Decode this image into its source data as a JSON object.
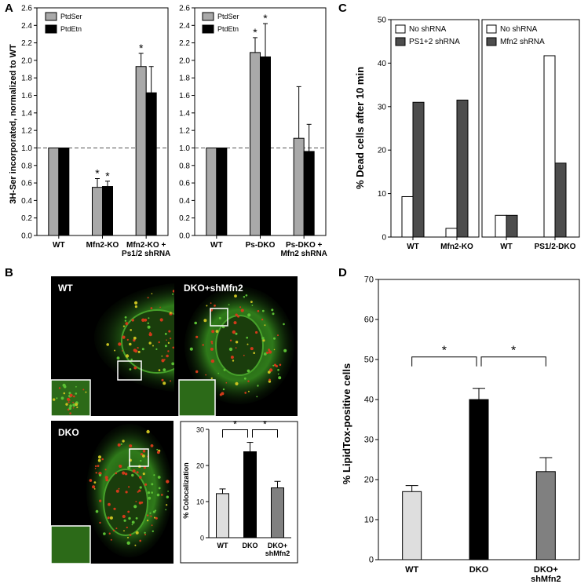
{
  "panels": {
    "A": "A",
    "B": "B",
    "C": "C",
    "D": "D"
  },
  "colors": {
    "grey": "#a9a9a9",
    "black": "#000000",
    "dark_grey": "#4d4d4d",
    "light_grey": "#dedede",
    "mid_grey": "#808080",
    "white": "#ffffff"
  },
  "chart_data": [
    {
      "id": "A-left",
      "type": "bar",
      "ylabel": "3H-Ser incorporated, normalized to WT",
      "ylim": [
        0,
        2.6
      ],
      "yticks": [
        0,
        0.2,
        0.4,
        0.6,
        0.8,
        1.0,
        1.2,
        1.4,
        1.6,
        1.8,
        2.0,
        2.2,
        2.4,
        2.6
      ],
      "reference_line": 1.0,
      "categories": [
        "WT",
        "Mfn2-KO",
        "Mfn2-KO + Ps1/2 shRNA"
      ],
      "series": [
        {
          "name": "PtdSer",
          "color": "#a9a9a9",
          "values": [
            1.0,
            0.55,
            1.93
          ],
          "errors": [
            0,
            0.1,
            0.15
          ],
          "stars": [
            false,
            true,
            true
          ]
        },
        {
          "name": "PtdEtn",
          "color": "#000000",
          "values": [
            1.0,
            0.56,
            1.63
          ],
          "errors": [
            0,
            0.06,
            0.3
          ],
          "stars": [
            false,
            true,
            false
          ]
        }
      ]
    },
    {
      "id": "A-right",
      "type": "bar",
      "ylim": [
        0,
        2.6
      ],
      "yticks": [
        0,
        0.2,
        0.4,
        0.6,
        0.8,
        1.0,
        1.2,
        1.4,
        1.6,
        1.8,
        2.0,
        2.2,
        2.4,
        2.6
      ],
      "reference_line": 1.0,
      "categories": [
        "WT",
        "Ps-DKO",
        "Ps-DKO + Mfn2 shRNA"
      ],
      "series": [
        {
          "name": "PtdSer",
          "color": "#a9a9a9",
          "values": [
            1.0,
            2.09,
            1.11
          ],
          "errors": [
            0,
            0.17,
            0.59
          ],
          "stars": [
            false,
            true,
            false
          ]
        },
        {
          "name": "PtdEtn",
          "color": "#000000",
          "values": [
            1.0,
            2.04,
            0.96
          ],
          "errors": [
            0,
            0.38,
            0.31
          ],
          "stars": [
            false,
            true,
            false
          ]
        }
      ]
    },
    {
      "id": "C-left",
      "type": "bar",
      "ylabel": "% Dead cells after 10 min",
      "ylim": [
        0,
        50
      ],
      "yticks": [
        0,
        10,
        20,
        30,
        40,
        50
      ],
      "categories": [
        "WT",
        "Mfn2-KO"
      ],
      "series": [
        {
          "name": "No shRNA",
          "color": "#ffffff",
          "values": [
            9.3,
            2.0
          ]
        },
        {
          "name": "PS1+2 shRNA",
          "color": "#4d4d4d",
          "values": [
            31.0,
            31.5
          ]
        }
      ]
    },
    {
      "id": "C-right",
      "type": "bar",
      "ylim": [
        0,
        50
      ],
      "categories": [
        "WT",
        "PS1/2-DKO"
      ],
      "series": [
        {
          "name": "No shRNA",
          "color": "#ffffff",
          "values": [
            5.0,
            41.7
          ]
        },
        {
          "name": "Mfn2 shRNA",
          "color": "#4d4d4d",
          "values": [
            5.0,
            17.0
          ]
        }
      ]
    },
    {
      "id": "B-inset",
      "type": "bar",
      "ylabel": "% Colocalization",
      "ylim": [
        0,
        30
      ],
      "yticks": [
        0,
        10,
        20,
        30
      ],
      "categories": [
        "WT",
        "DKO",
        "DKO+ shMfn2"
      ],
      "values": [
        12.2,
        23.8,
        13.8
      ],
      "errors": [
        1.3,
        2.6,
        1.8
      ],
      "colors": [
        "#dedede",
        "#000000",
        "#808080"
      ],
      "significance": [
        {
          "from": 0,
          "to": 1,
          "label": "*"
        },
        {
          "from": 1,
          "to": 2,
          "label": "*"
        }
      ]
    },
    {
      "id": "D",
      "type": "bar",
      "ylabel": "% LipidTox-positive cells",
      "ylim": [
        0,
        70
      ],
      "yticks": [
        0,
        10,
        20,
        30,
        40,
        50,
        60,
        70
      ],
      "categories": [
        "WT",
        "DKO",
        "DKO+ shMfn2"
      ],
      "values": [
        17,
        40,
        22
      ],
      "errors": [
        1.5,
        2.8,
        3.5
      ],
      "colors": [
        "#dedede",
        "#000000",
        "#808080"
      ],
      "significance": [
        {
          "from": 0,
          "to": 1,
          "label": "*"
        },
        {
          "from": 1,
          "to": 2,
          "label": "*"
        }
      ]
    }
  ],
  "images": {
    "wt": "WT",
    "dko_shmfn2": "DKO+shMfn2",
    "dko": "DKO"
  }
}
